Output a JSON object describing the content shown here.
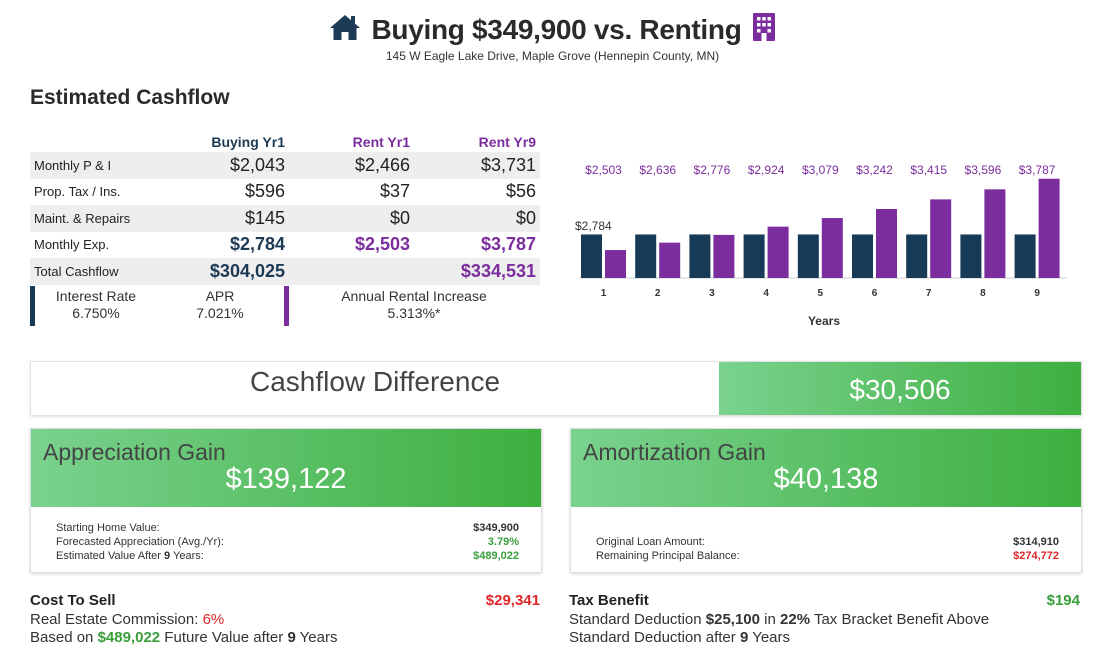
{
  "header": {
    "title": "Buying $349,900 vs. Renting",
    "subtitle": "145 W Eagle Lake Drive, Maple Grove (Hennepin County, MN)",
    "home_icon": "home-icon",
    "building_icon": "building-icon",
    "home_icon_color": "#1d3a55",
    "building_icon_color": "#7b2d9e"
  },
  "cashflow": {
    "section_title": "Estimated Cashflow",
    "columns": {
      "buying": "Buying Yr1",
      "rent1": "Rent Yr1",
      "rent9": "Rent Yr9"
    },
    "rows": [
      {
        "label": "Monthly P & I",
        "buying": "$2,043",
        "rent1": "$2,466",
        "rent9": "$3,731"
      },
      {
        "label": "Prop. Tax / Ins.",
        "buying": "$596",
        "rent1": "$37",
        "rent9": "$56"
      },
      {
        "label": "Maint. & Repairs",
        "buying": "$145",
        "rent1": "$0",
        "rent9": "$0"
      },
      {
        "label": "Monthly Exp.",
        "buying": "$2,784",
        "rent1": "$2,503",
        "rent9": "$3,787"
      },
      {
        "label": "Total Cashflow",
        "buying": "$304,025",
        "rent1": "",
        "rent9": "$334,531"
      }
    ],
    "rates": {
      "interest_label": "Interest Rate",
      "interest_value": "6.750%",
      "apr_label": "APR",
      "apr_value": "7.021%",
      "rent_increase_label": "Annual Rental Increase",
      "rent_increase_value": "5.313%*"
    },
    "colors": {
      "buy": "#173a57",
      "rent": "#7b2d9e"
    }
  },
  "chart_data": {
    "type": "bar",
    "categories": [
      "1",
      "2",
      "3",
      "4",
      "5",
      "6",
      "7",
      "8",
      "9"
    ],
    "series": [
      {
        "values": [
          2784,
          2784,
          2784,
          2784,
          2784,
          2784,
          2784,
          2784,
          2784
        ]
      },
      {
        "values": [
          2503,
          2636,
          2776,
          2924,
          3079,
          3242,
          3415,
          3596,
          3787
        ]
      }
    ],
    "buy_label": "$2,784",
    "rent_labels": [
      "$2,503",
      "$2,636",
      "$2,776",
      "$2,924",
      "$3,079",
      "$3,242",
      "$3,415",
      "$3,596",
      "$3,787"
    ],
    "xlabel": "Years",
    "ylabel": "",
    "ylim": [
      2000,
      3800
    ],
    "grid": false,
    "colors": [
      "#173a57",
      "#7b2d9e"
    ]
  },
  "difference": {
    "label": "Cashflow Difference",
    "value": "$30,506"
  },
  "appreciation": {
    "title": "Appreciation Gain",
    "amount": "$139,122",
    "lines": [
      {
        "label": "Starting Home Value:",
        "value": "$349,900"
      },
      {
        "label": "Forecasted Appreciation (Avg./Yr):",
        "value": "3.79%"
      },
      {
        "label_pre": "Estimated Value After ",
        "label_years": "9",
        "label_post": " Years:",
        "value": "$489,022"
      }
    ]
  },
  "amortization": {
    "title": "Amortization Gain",
    "amount": "$40,138",
    "lines": [
      {
        "label": "Original Loan Amount:",
        "value": "$314,910"
      },
      {
        "label": "Remaining Principal Balance:",
        "value": "$274,772"
      }
    ]
  },
  "cost_to_sell": {
    "title": "Cost To Sell",
    "value": "$29,341",
    "line1_pre": "Real Estate Commission: ",
    "line1_val": "6%",
    "line2_pre": "Based on ",
    "line2_val": "$489,022",
    "line2_mid": " Future Value after ",
    "line2_years": "9",
    "line2_post": " Years"
  },
  "tax_benefit": {
    "title": "Tax Benefit",
    "value": "$194",
    "pre": "Standard Deduction ",
    "deduction": "$25,100",
    "mid": " in ",
    "bracket": "22%",
    "post": " Tax Bracket Benefit Above",
    "line2_pre": "Standard Deduction after ",
    "line2_years": "9",
    "line2_post": " Years"
  }
}
